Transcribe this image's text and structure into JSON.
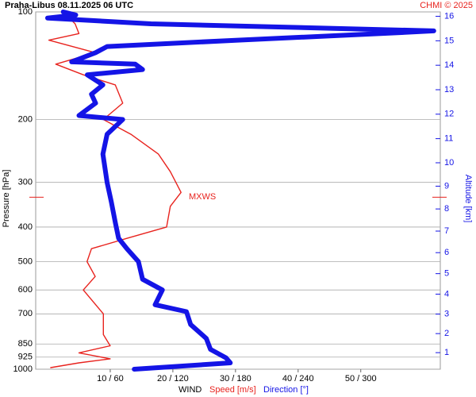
{
  "chart_data": {
    "type": "line",
    "title": "Praha-Libus   08.11.2025 06 UTC",
    "credit": "CHMI © 2025",
    "ylabel": "Pressure [hPa]",
    "y2label": "Altitude [km]",
    "xlabel": "WIND",
    "xlabel_speed": "Speed [m/s]",
    "xlabel_direction": "Direction [°]",
    "annotation": {
      "text": "MXWS",
      "y": 330
    },
    "log_y": true,
    "ylim": [
      1000,
      100
    ],
    "yticks": [
      100,
      200,
      300,
      400,
      500,
      600,
      700,
      850,
      925,
      1000
    ],
    "y2ticks": [
      1,
      2,
      3,
      4,
      5,
      6,
      7,
      8,
      9,
      10,
      11,
      12,
      13,
      14,
      15,
      16
    ],
    "xlim": [
      -1.9,
      62.7
    ],
    "x2lim": [
      -11.4,
      376.2
    ],
    "xticks": [
      {
        "value": 10,
        "label": "10 / 60"
      },
      {
        "value": 20,
        "label": "20 / 120"
      },
      {
        "value": 30,
        "label": "30 / 180"
      },
      {
        "value": 40,
        "label": "40 / 240"
      },
      {
        "value": 50,
        "label": "50 / 300"
      }
    ],
    "grid": true,
    "series": [
      {
        "name": "Speed [m/s]",
        "color": "#e8231e",
        "axis": "x",
        "y": [
          990,
          960,
          935,
          900,
          860,
          800,
          700,
          600,
          550,
          500,
          460,
          430,
          400,
          350,
          320,
          280,
          250,
          220,
          200,
          180,
          160,
          150,
          140,
          130,
          120,
          115,
          108,
          100
        ],
        "values": [
          0.5,
          5,
          10,
          5,
          10,
          8.9,
          8.9,
          5.7,
          7.6,
          6.3,
          7,
          12.7,
          19,
          19.6,
          21.3,
          19.6,
          17.7,
          13.3,
          8.9,
          12,
          10.8,
          5.7,
          1.3,
          7.6,
          0.2,
          5,
          4.4,
          2.5
        ]
      },
      {
        "name": "Direction [°]",
        "color": "#1414e6",
        "axis": "x2",
        "y": [
          1000,
          990,
          960,
          930,
          880,
          820,
          750,
          690,
          660,
          600,
          560,
          500,
          460,
          430,
          390,
          340,
          300,
          250,
          220,
          200,
          195,
          180,
          170,
          160,
          150,
          145,
          140,
          138,
          130,
          125,
          120,
          115,
          113,
          108,
          104,
          102,
          100
        ],
        "values": [
          83,
          106,
          175,
          171,
          156,
          152,
          137,
          133,
          103,
          110,
          91,
          87,
          76,
          68,
          65,
          61,
          57,
          53,
          57,
          72,
          30,
          46,
          42,
          53,
          38,
          91,
          84,
          23,
          46,
          57,
          182,
          319,
          370,
          99,
          0,
          27,
          15
        ]
      }
    ]
  }
}
